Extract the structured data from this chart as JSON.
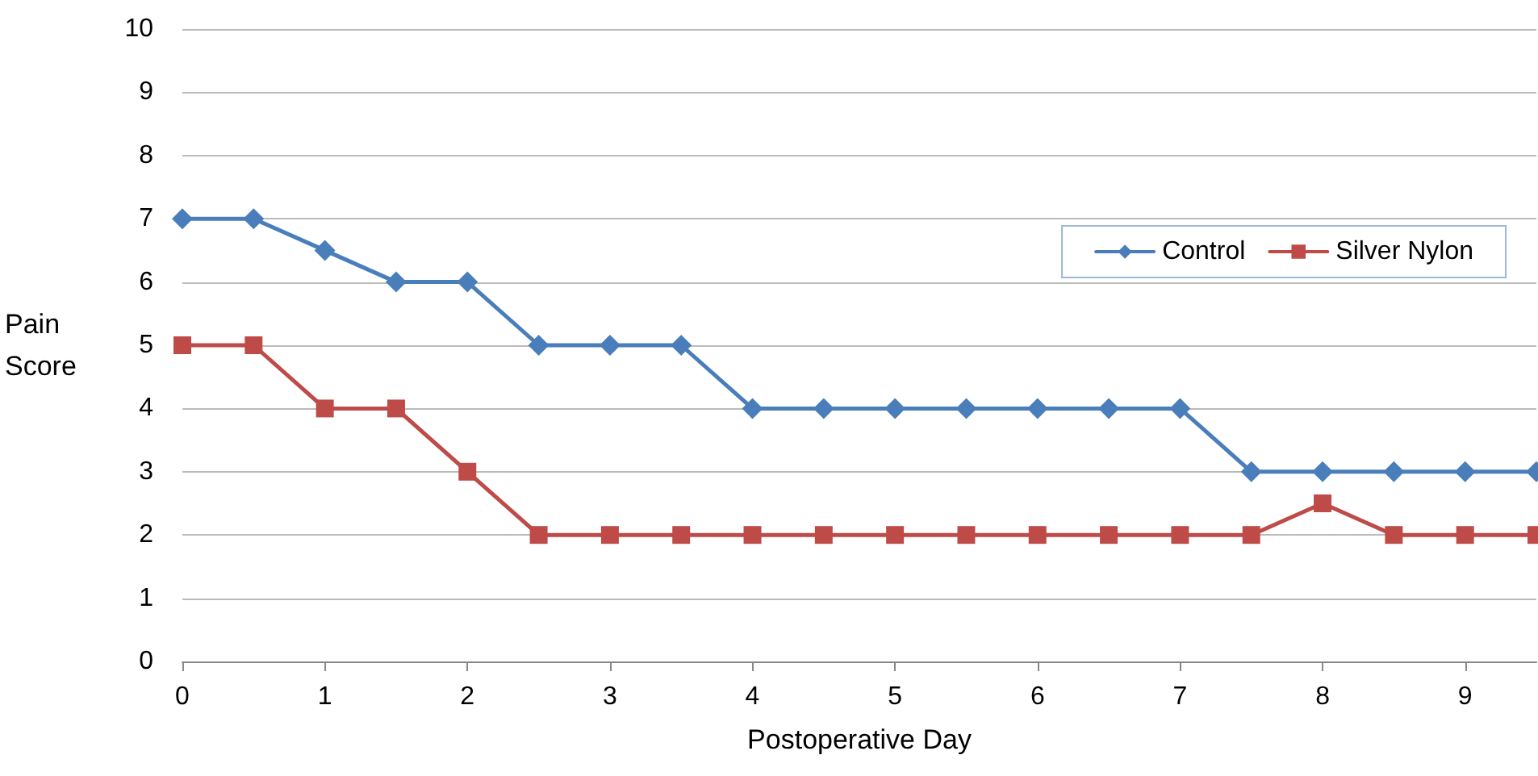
{
  "chart_data": {
    "type": "line",
    "xlabel": "Postoperative Day",
    "ylabel": "Pain\nScore",
    "x": [
      0,
      0.5,
      1,
      1.5,
      2,
      2.5,
      3,
      3.5,
      4,
      4.5,
      5,
      5.5,
      6,
      6.5,
      7,
      7.5,
      8,
      8.5,
      9,
      9.5
    ],
    "series": [
      {
        "name": "Control",
        "color": "#4a7ebb",
        "marker": "diamond",
        "values": [
          7,
          7,
          6.5,
          6,
          6,
          5,
          5,
          5,
          4,
          4,
          4,
          4,
          4,
          4,
          4,
          3,
          3,
          3,
          3,
          3
        ]
      },
      {
        "name": "Silver Nylon",
        "color": "#be4b48",
        "marker": "square",
        "values": [
          5,
          5,
          4,
          4,
          3,
          2,
          2,
          2,
          2,
          2,
          2,
          2,
          2,
          2,
          2,
          2,
          2.5,
          2,
          2,
          2
        ]
      }
    ],
    "xlim": [
      0,
      9.5
    ],
    "xticks": [
      0,
      1,
      2,
      3,
      4,
      5,
      6,
      7,
      8,
      9
    ],
    "ylim": [
      0,
      10
    ],
    "yticks": [
      0,
      1,
      2,
      3,
      4,
      5,
      6,
      7,
      8,
      9,
      10
    ],
    "grid": "y",
    "legend": "top right",
    "line_style": "solid"
  }
}
